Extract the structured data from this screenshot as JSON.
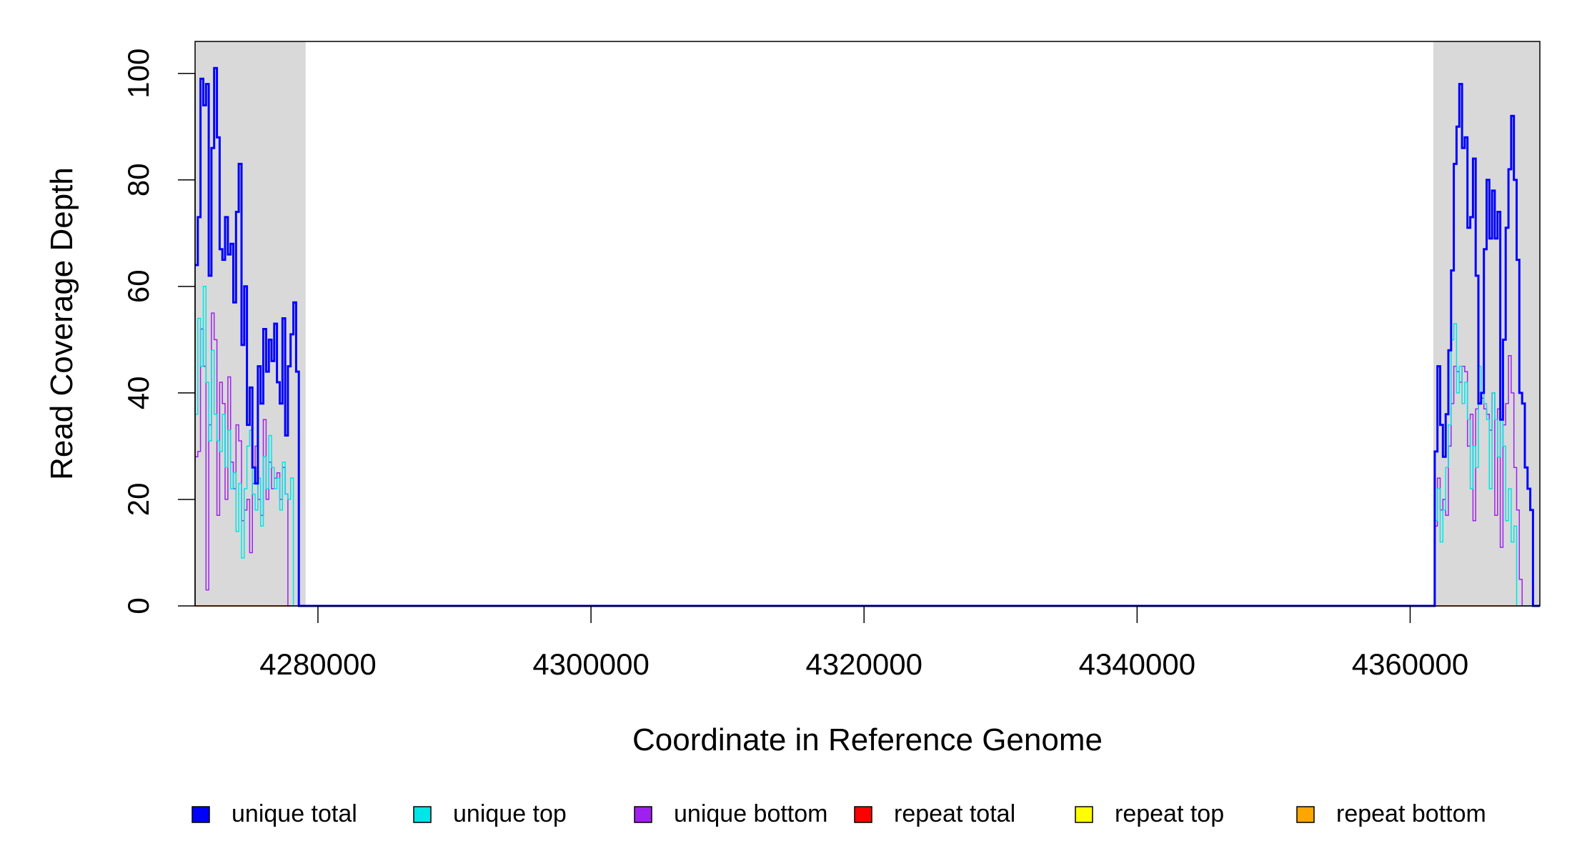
{
  "chart_data": {
    "type": "line",
    "xlabel": "Coordinate in Reference Genome",
    "ylabel": "Read Coverage Depth",
    "xlim": [
      4271000,
      4369500
    ],
    "ylim": [
      0,
      106
    ],
    "x_ticks": [
      4280000,
      4300000,
      4320000,
      4340000,
      4360000
    ],
    "y_ticks": [
      0,
      20,
      40,
      60,
      80,
      100
    ],
    "shaded_regions": [
      {
        "from": 4271000,
        "to": 4279100,
        "color": "#d9d9d9"
      },
      {
        "from": 4361700,
        "to": 4369500,
        "color": "#d9d9d9"
      }
    ],
    "series": [
      {
        "name": "unique total",
        "color": "#0000ff",
        "width": 3,
        "x": [
          4271000,
          4271200,
          4271400,
          4271600,
          4271800,
          4272000,
          4272200,
          4272400,
          4272600,
          4272800,
          4273000,
          4273200,
          4273400,
          4273600,
          4273800,
          4274000,
          4274200,
          4274400,
          4274600,
          4274800,
          4275000,
          4275200,
          4275400,
          4275600,
          4275800,
          4276000,
          4276200,
          4276400,
          4276600,
          4276800,
          4277000,
          4277200,
          4277400,
          4277600,
          4277800,
          4278000,
          4278200,
          4278400,
          4278600,
          4278800,
          4279000,
          4279200,
          4279400,
          4361600,
          4361800,
          4362000,
          4362200,
          4362400,
          4362600,
          4362800,
          4363000,
          4363200,
          4363400,
          4363600,
          4363800,
          4364000,
          4364200,
          4364400,
          4364600,
          4364800,
          4365000,
          4365200,
          4365400,
          4365600,
          4365800,
          4366000,
          4366200,
          4366400,
          4366600,
          4366800,
          4367000,
          4367200,
          4367400,
          4367600,
          4367800,
          4368000,
          4368200,
          4368400,
          4368600,
          4368800,
          4369000,
          4369200,
          4369400
        ],
        "y": [
          64,
          73,
          99,
          94,
          98,
          62,
          86,
          101,
          88,
          67,
          65,
          73,
          66,
          68,
          57,
          74,
          83,
          49,
          60,
          34,
          41,
          26,
          23,
          45,
          38,
          52,
          44,
          50,
          46,
          53,
          42,
          38,
          54,
          32,
          45,
          51,
          57,
          44,
          0,
          0,
          0,
          0,
          0,
          0,
          29,
          45,
          34,
          28,
          36,
          48,
          63,
          83,
          90,
          98,
          86,
          88,
          71,
          73,
          84,
          62,
          38,
          40,
          67,
          80,
          69,
          78,
          69,
          74,
          35,
          50,
          71,
          82,
          92,
          80,
          65,
          40,
          38,
          26,
          22,
          18,
          0,
          0,
          0
        ]
      },
      {
        "name": "unique top",
        "color": "#00e5e5",
        "width": 1.5,
        "x": [
          4271000,
          4271200,
          4271400,
          4271600,
          4271800,
          4272000,
          4272200,
          4272400,
          4272600,
          4272800,
          4273000,
          4273200,
          4273400,
          4273600,
          4273800,
          4274000,
          4274200,
          4274400,
          4274600,
          4274800,
          4275000,
          4275200,
          4275400,
          4275600,
          4275800,
          4276000,
          4276200,
          4276400,
          4276600,
          4276800,
          4277000,
          4277200,
          4277400,
          4277600,
          4277800,
          4278000,
          4278200,
          4278400,
          4278600,
          4278800,
          4279000,
          4279200,
          4279400,
          4361600,
          4361800,
          4362000,
          4362200,
          4362400,
          4362600,
          4362800,
          4363000,
          4363200,
          4363400,
          4363600,
          4363800,
          4364000,
          4364200,
          4364400,
          4364600,
          4364800,
          4365000,
          4365200,
          4365400,
          4365600,
          4365800,
          4366000,
          4366200,
          4366400,
          4366600,
          4366800,
          4367000,
          4367200,
          4367400,
          4367600,
          4367800,
          4368000,
          4368200,
          4368400,
          4368600,
          4368800,
          4369000,
          4369200,
          4369400
        ],
        "y": [
          36,
          54,
          45,
          60,
          42,
          31,
          48,
          36,
          31,
          29,
          36,
          26,
          33,
          22,
          25,
          14,
          23,
          9,
          22,
          30,
          33,
          21,
          18,
          24,
          15,
          28,
          22,
          32,
          26,
          22,
          24,
          18,
          27,
          21,
          20,
          24,
          0,
          0,
          0,
          0,
          0,
          0,
          0,
          0,
          16,
          22,
          12,
          18,
          26,
          34,
          50,
          53,
          40,
          45,
          38,
          42,
          35,
          22,
          30,
          26,
          45,
          40,
          38,
          35,
          22,
          40,
          35,
          28,
          35,
          30,
          16,
          22,
          12,
          15,
          0,
          0,
          0,
          0,
          0,
          0,
          0,
          0,
          0
        ]
      },
      {
        "name": "unique bottom",
        "color": "#a020f0",
        "width": 1.5,
        "x": [
          4271000,
          4271200,
          4271400,
          4271600,
          4271800,
          4272000,
          4272200,
          4272400,
          4272600,
          4272800,
          4273000,
          4273200,
          4273400,
          4273600,
          4273800,
          4274000,
          4274200,
          4274400,
          4274600,
          4274800,
          4275000,
          4275200,
          4275400,
          4275600,
          4275800,
          4276000,
          4276200,
          4276400,
          4276600,
          4276800,
          4277000,
          4277200,
          4277400,
          4277600,
          4277800,
          4278000,
          4278200,
          4278400,
          4278600,
          4278800,
          4279000,
          4279200,
          4279400,
          4361600,
          4361800,
          4362000,
          4362200,
          4362400,
          4362600,
          4362800,
          4363000,
          4363200,
          4363400,
          4363600,
          4363800,
          4364000,
          4364200,
          4364400,
          4364600,
          4364800,
          4365000,
          4365200,
          4365400,
          4365600,
          4365800,
          4366000,
          4366200,
          4366400,
          4366600,
          4366800,
          4367000,
          4367200,
          4367400,
          4367600,
          4367800,
          4368000,
          4368200,
          4368400,
          4368600,
          4368800,
          4369000,
          4369200,
          4369400
        ],
        "y": [
          28,
          29,
          52,
          45,
          3,
          34,
          55,
          50,
          17,
          42,
          38,
          20,
          43,
          27,
          22,
          34,
          31,
          16,
          18,
          20,
          10,
          23,
          30,
          20,
          17,
          35,
          20,
          27,
          22,
          24,
          25,
          20,
          26,
          21,
          0,
          0,
          0,
          0,
          0,
          0,
          0,
          0,
          0,
          0,
          15,
          24,
          18,
          20,
          17,
          30,
          38,
          45,
          44,
          42,
          45,
          44,
          30,
          36,
          16,
          37,
          38,
          39,
          37,
          36,
          33,
          40,
          17,
          37,
          11,
          34,
          38,
          47,
          40,
          26,
          18,
          5,
          0,
          0,
          0,
          0,
          0,
          0,
          0
        ]
      },
      {
        "name": "repeat total",
        "color": "#ff0000",
        "width": 1.5,
        "x": [
          4271000,
          4369500
        ],
        "y": [
          0,
          0
        ]
      },
      {
        "name": "repeat top",
        "color": "#ffff00",
        "width": 1.5,
        "x": [
          4271000,
          4369500
        ],
        "y": [
          0,
          0
        ]
      },
      {
        "name": "repeat bottom",
        "color": "#ffa500",
        "width": 2,
        "x": [
          4271000,
          4279000
        ],
        "y": [
          0,
          0
        ]
      }
    ]
  }
}
